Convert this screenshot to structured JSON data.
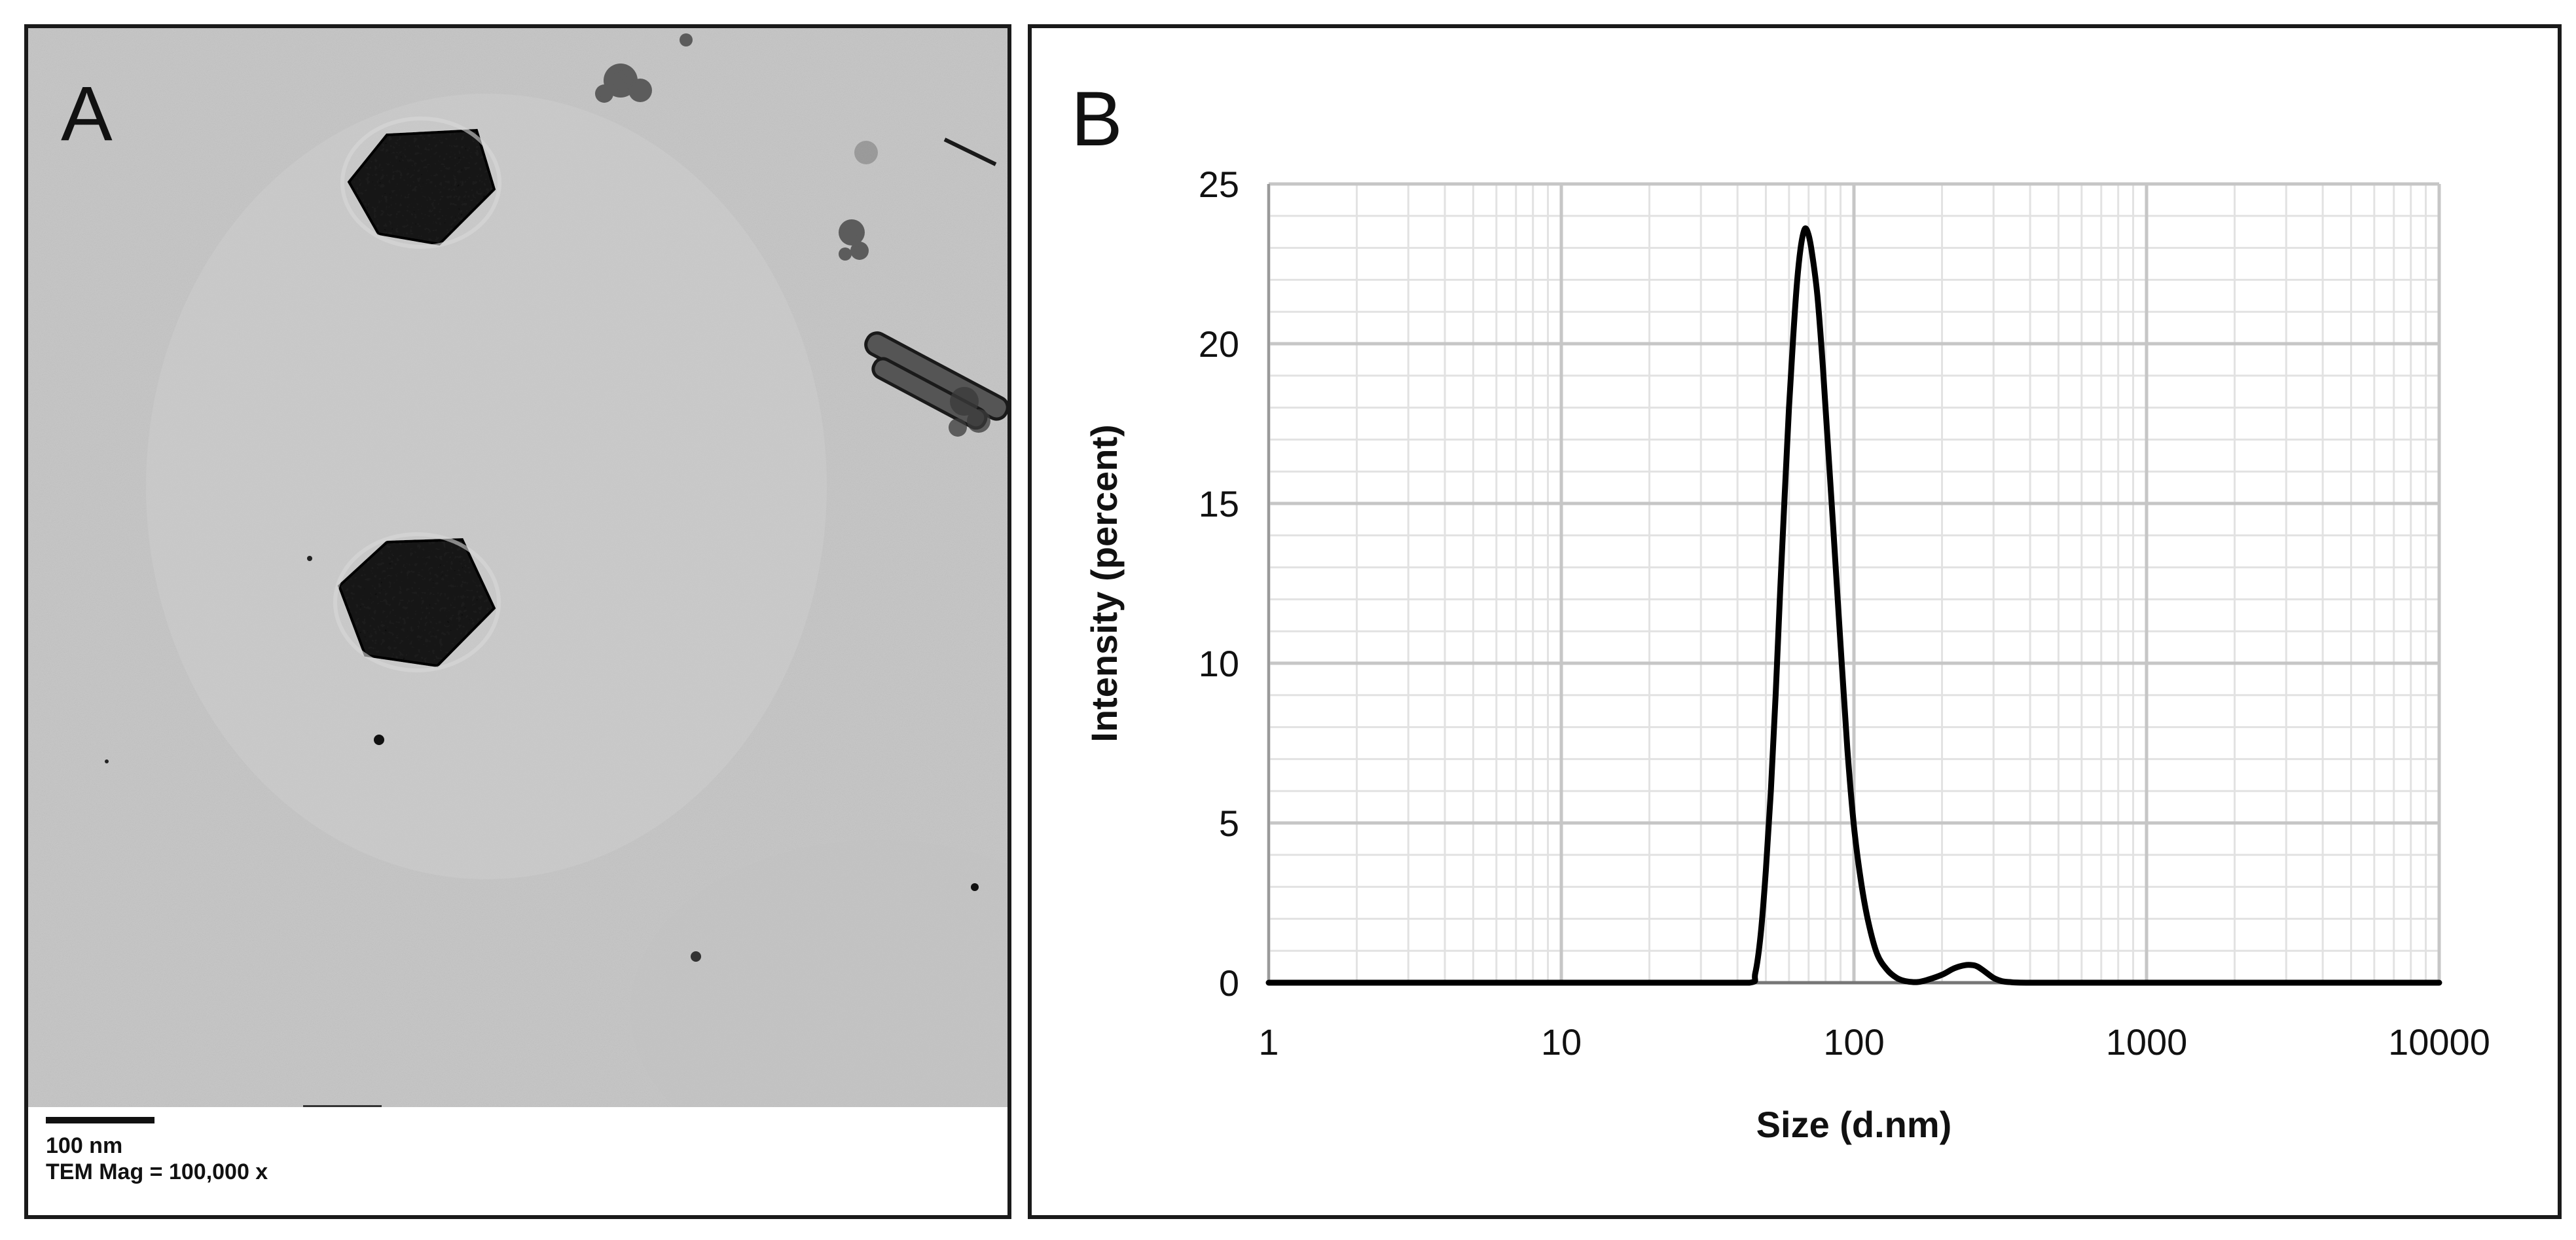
{
  "panel_a": {
    "letter": "A",
    "scale_bar_label": "100 nm",
    "magnification_label": "TEM Mag = 100,000 x"
  },
  "panel_b": {
    "letter": "B"
  },
  "colors": {
    "micrograph_background": "#c8c8c8",
    "particle": "#1c1c1c",
    "curve": "#000000",
    "grid_major": "#c6c6c6",
    "grid_minor": "#e2e2e2"
  },
  "chart_data": {
    "type": "line",
    "title": "",
    "xlabel": "Size (d.nm)",
    "ylabel": "Intensity (percent)",
    "x_scale": "log",
    "xlim": [
      1,
      10000
    ],
    "ylim": [
      0,
      25
    ],
    "x_ticks": [
      1,
      10,
      100,
      1000,
      10000
    ],
    "x_tick_labels": [
      "1",
      "10",
      "100",
      "1000",
      "10000"
    ],
    "y_ticks": [
      0,
      5,
      10,
      15,
      20,
      25
    ],
    "y_tick_labels": [
      "0",
      "5",
      "10",
      "15",
      "20",
      "25"
    ],
    "grid": true,
    "legend": "none",
    "series": [
      {
        "x": [
          1,
          10,
          30,
          44,
          46,
          48,
          50,
          52,
          54,
          56,
          58,
          60,
          62,
          64,
          66,
          68,
          70,
          72,
          75,
          78,
          81,
          85,
          90,
          95,
          100,
          106,
          112,
          120,
          130,
          140,
          150,
          165,
          180,
          200,
          220,
          240,
          255,
          265,
          280,
          300,
          320,
          340,
          400,
          1000,
          10000
        ],
        "y": [
          0,
          0,
          0,
          0,
          0.3,
          1.5,
          3.5,
          6.0,
          9.0,
          12.3,
          15.3,
          18.0,
          20.2,
          22.0,
          23.1,
          23.6,
          23.4,
          22.8,
          21.5,
          19.5,
          17.2,
          14.2,
          10.6,
          7.3,
          4.9,
          3.1,
          1.9,
          0.9,
          0.4,
          0.15,
          0.05,
          0.02,
          0.1,
          0.25,
          0.45,
          0.55,
          0.55,
          0.5,
          0.35,
          0.15,
          0.05,
          0.02,
          0,
          0,
          0
        ]
      }
    ]
  }
}
